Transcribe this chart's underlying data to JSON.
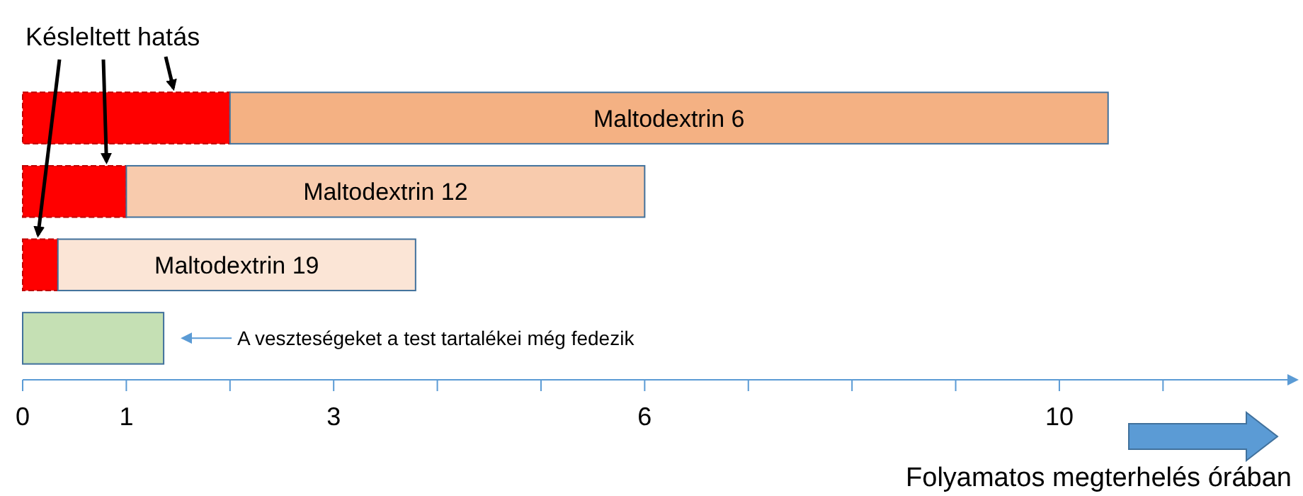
{
  "chart_data": {
    "type": "bar",
    "orientation": "horizontal",
    "stacked": true,
    "categories": [
      "Maltodextrin 6",
      "Maltodextrin 12",
      "Maltodextrin 19",
      null
    ],
    "series": [
      {
        "color": "#ff0000",
        "line_style": "dashed",
        "values": [
          2,
          1,
          0.34,
          null
        ]
      },
      {
        "colors": [
          "#f4b183",
          "#f8cbad",
          "#fbe5d6",
          "#c5e0b4"
        ],
        "values": [
          8.47,
          5,
          3.45,
          1.36
        ]
      }
    ],
    "xlim": [
      0,
      12.2
    ],
    "xticks": [
      0,
      1,
      {
        "value": 2,
        "label": null
      },
      3,
      {
        "value": 4,
        "label": null
      },
      {
        "value": 5,
        "label": null
      },
      6,
      {
        "value": 7,
        "label": null
      },
      {
        "value": 8,
        "label": null
      },
      {
        "value": 9,
        "label": null
      },
      10,
      {
        "value": 11,
        "label": null
      }
    ],
    "xlabel": "Folyamatos megterhelés órában",
    "annotations": [
      "Késleltett hatás",
      "A veszteségeket a test tartalékei még fedezik"
    ],
    "grid": false
  }
}
